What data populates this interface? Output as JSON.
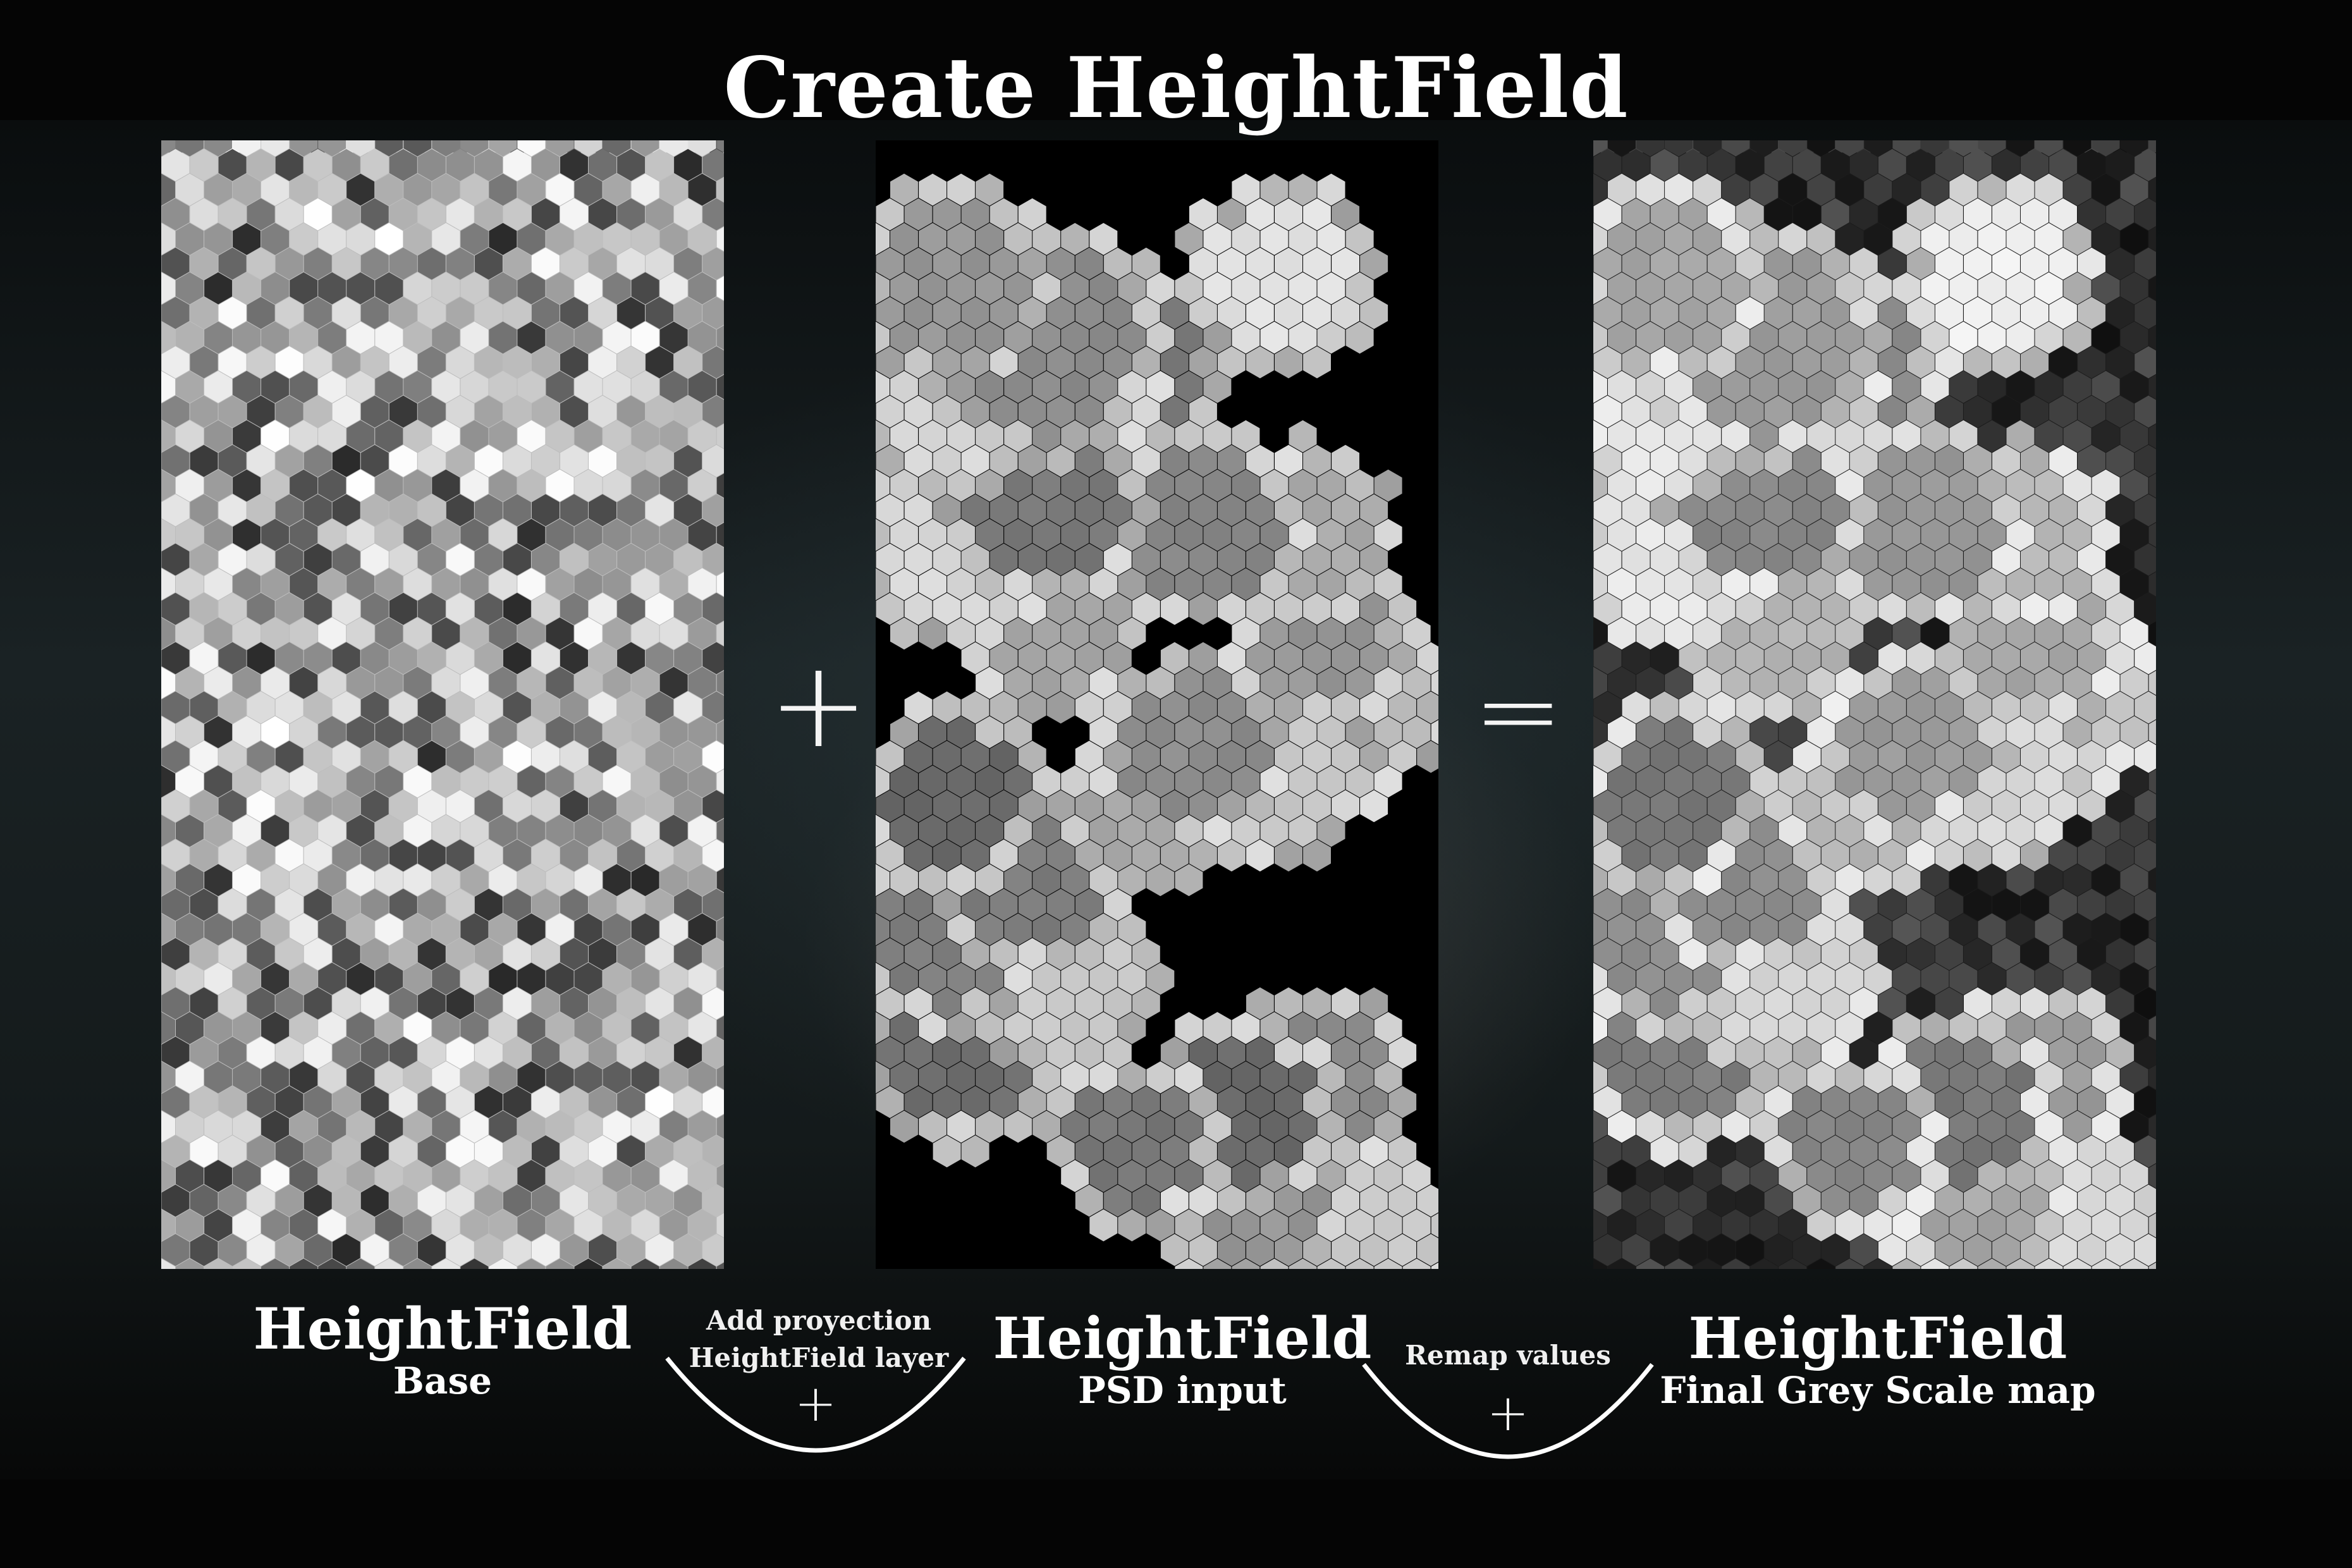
{
  "title": "Create HeightField",
  "panels": [
    {
      "id": "base",
      "heading": "HeightField",
      "subheading": "Base"
    },
    {
      "id": "psd",
      "heading": "HeightField",
      "subheading": "PSD input"
    },
    {
      "id": "final",
      "heading": "HeightField",
      "subheading": "Final Grey Scale map"
    }
  ],
  "operators": {
    "plus": "+",
    "equals": "="
  },
  "steps": [
    {
      "line1": "Add proyection",
      "line2": "HeightField layer",
      "symbol": "+"
    },
    {
      "line1": "Remap values",
      "symbol": "+"
    }
  ]
}
